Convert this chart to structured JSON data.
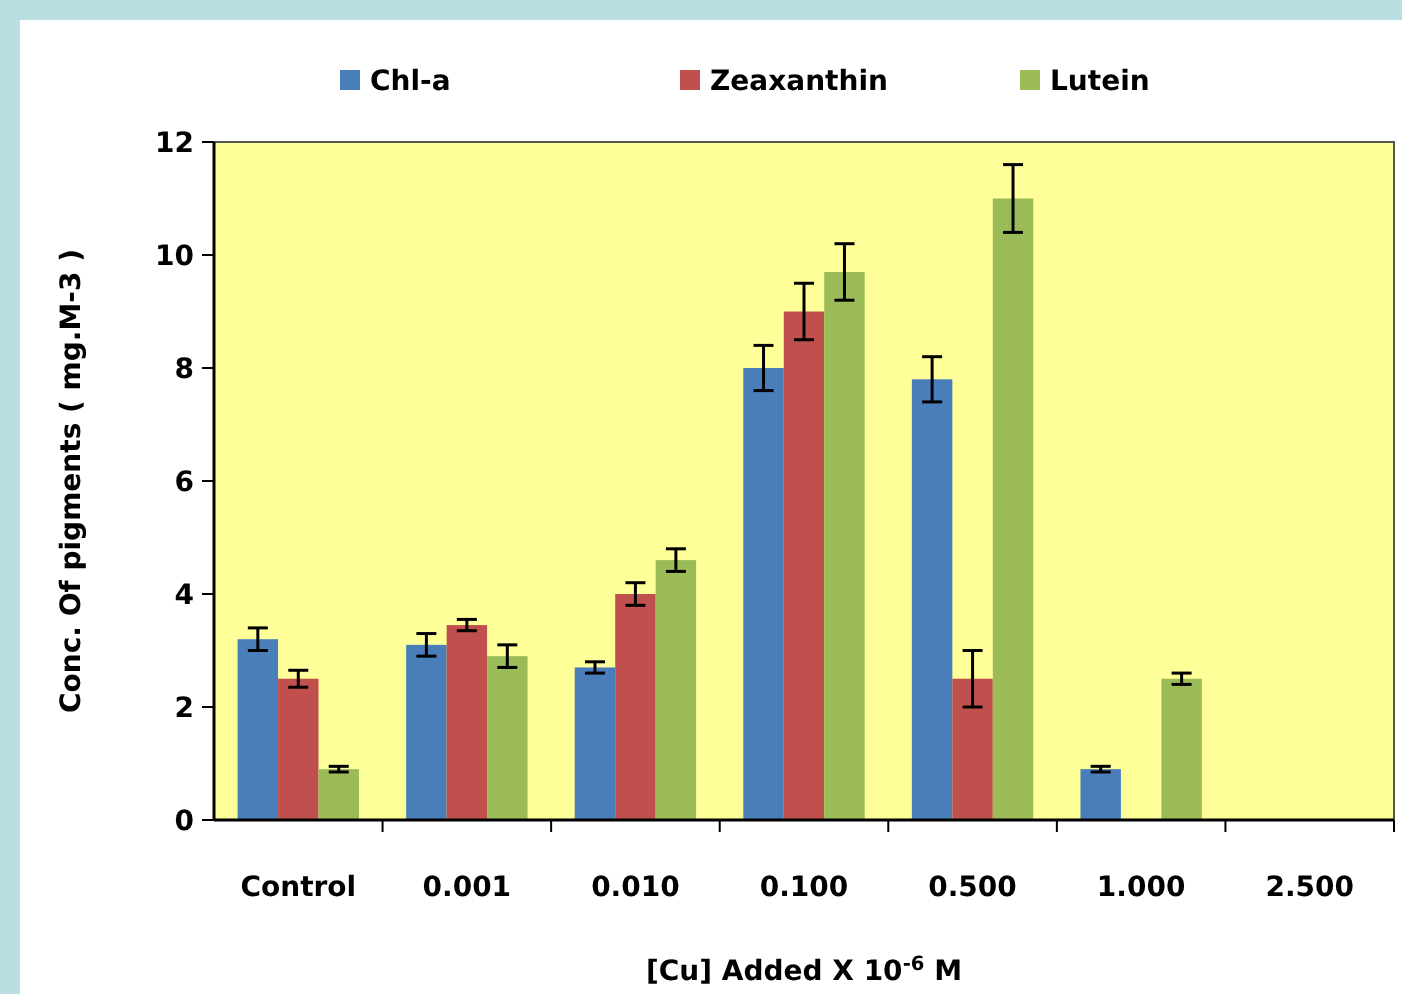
{
  "chart_data": {
    "type": "bar",
    "xlabel": "[Cu] Added  X  10$^{-6}$ M",
    "ylabel": "Conc. Of pigments ( mg.M-3 )",
    "categories": [
      "Control",
      "0.001",
      "0.010",
      "0.100",
      "0.500",
      "1.000",
      "2.500"
    ],
    "series": [
      {
        "name": "Chl-a",
        "color": "#4a7ebb",
        "values": [
          3.2,
          3.1,
          2.7,
          8.0,
          7.8,
          0.9,
          null
        ],
        "errors": [
          0.2,
          0.2,
          0.1,
          0.4,
          0.4,
          0.05,
          null
        ]
      },
      {
        "name": "Zeaxanthin",
        "color": "#c0504d",
        "values": [
          2.5,
          3.45,
          4.0,
          9.0,
          2.5,
          null,
          null
        ],
        "errors": [
          0.15,
          0.1,
          0.2,
          0.5,
          0.5,
          null,
          null
        ]
      },
      {
        "name": "Lutein",
        "color": "#9bbb59",
        "values": [
          0.9,
          2.9,
          4.6,
          9.7,
          11.0,
          2.5,
          null
        ],
        "errors": [
          0.05,
          0.2,
          0.2,
          0.5,
          0.6,
          0.1,
          null
        ]
      }
    ],
    "ylim": [
      0,
      12
    ],
    "yticks": [
      0,
      2,
      4,
      6,
      8,
      10,
      12
    ],
    "grid": false,
    "legend": "top"
  }
}
